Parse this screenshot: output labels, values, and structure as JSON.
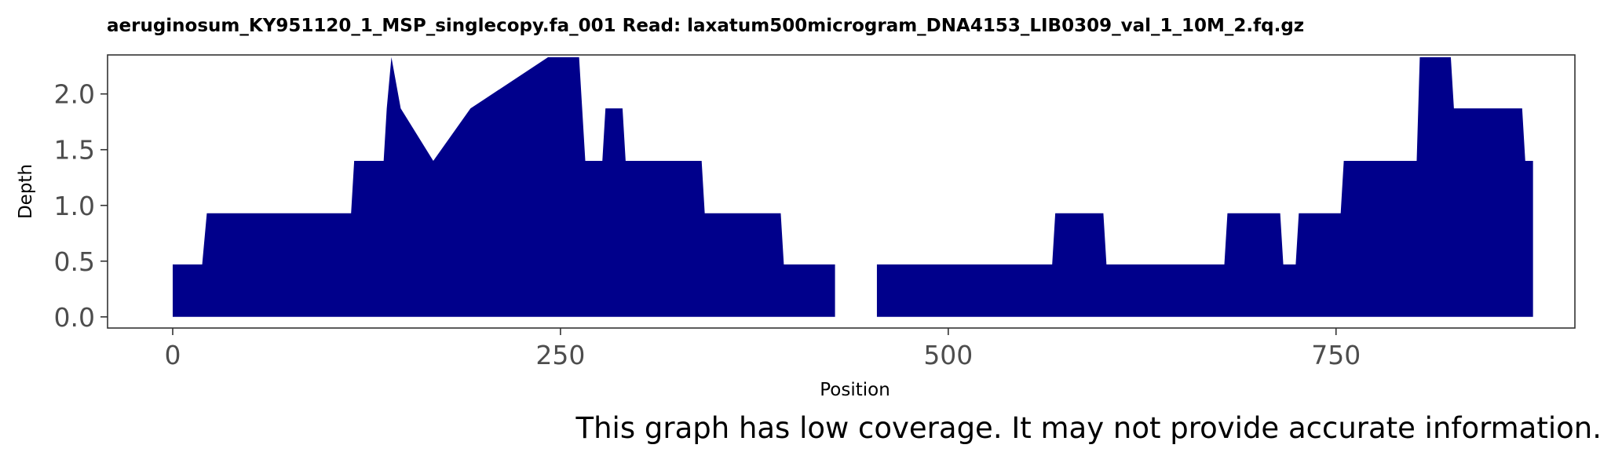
{
  "chart_data": {
    "type": "area",
    "title": "aeruginosum_KY951120_1_MSP_singlecopy.fa_001   Read: laxatum500microgram_DNA4153_LIB0309_val_1_10M_2.fq.gz",
    "xlabel": "Position",
    "ylabel": "Depth",
    "xlim": [
      -42,
      904
    ],
    "ylim": [
      -0.1,
      2.35
    ],
    "x_ticks": [
      0,
      250,
      500,
      750
    ],
    "x_tick_labels": [
      "0",
      "250",
      "500",
      "750"
    ],
    "y_ticks": [
      0,
      0.5,
      1,
      1.5,
      2
    ],
    "y_tick_labels": [
      "0.0",
      "0.5",
      "1.0",
      "1.5",
      "2.0"
    ],
    "fill_color": "#00008b",
    "grid": false,
    "legend": false,
    "segments": [
      {
        "x": [
          0,
          19,
          22,
          115,
          117,
          136,
          138,
          141,
          147,
          168,
          192,
          242,
          262,
          266,
          277,
          279,
          290,
          292,
          341,
          343,
          392,
          394,
          427
        ],
        "y": [
          0.47,
          0.47,
          0.93,
          0.93,
          1.4,
          1.4,
          1.87,
          2.33,
          1.87,
          1.4,
          1.87,
          2.33,
          2.33,
          1.4,
          1.4,
          1.87,
          1.87,
          1.4,
          1.4,
          0.93,
          0.93,
          0.47,
          0.47
        ]
      },
      {
        "x": [
          454,
          567,
          569,
          600,
          602,
          678,
          680,
          714,
          716,
          724,
          726,
          753,
          755,
          802,
          804,
          824,
          826,
          870,
          872,
          877
        ],
        "y": [
          0.47,
          0.47,
          0.93,
          0.93,
          0.47,
          0.47,
          0.93,
          0.93,
          0.47,
          0.47,
          0.93,
          0.93,
          1.4,
          1.4,
          2.33,
          2.33,
          1.87,
          1.87,
          1.4,
          1.4
        ]
      }
    ]
  },
  "caption": "This graph has low coverage. It may not provide accurate information."
}
